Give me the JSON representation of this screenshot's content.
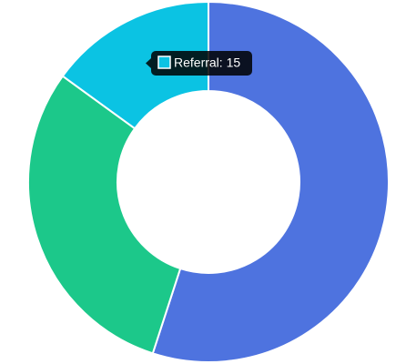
{
  "chart_data": {
    "type": "pie",
    "donut": true,
    "categories": [
      null,
      null,
      "Referral"
    ],
    "values": [
      55,
      30,
      15
    ],
    "colors": [
      "#4e73df",
      "#1cc88a",
      "#0bc3e3"
    ],
    "tooltip_index": 2
  }
}
